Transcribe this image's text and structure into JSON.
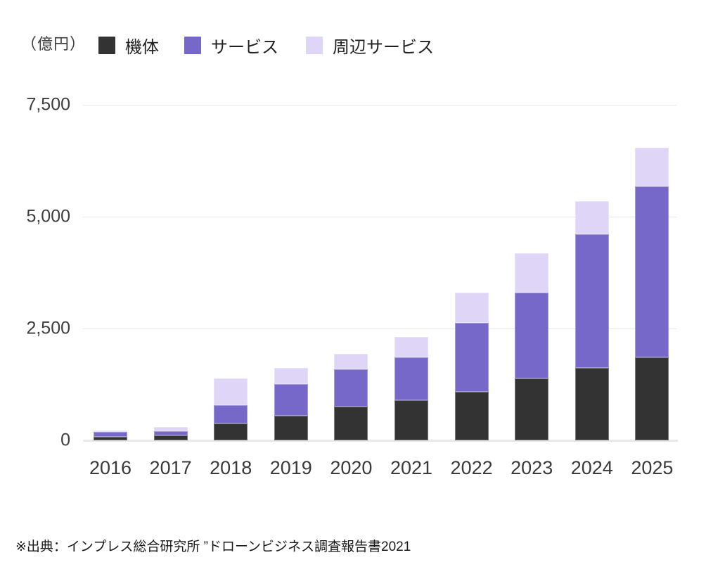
{
  "unit_label": "（億円）",
  "legend": {
    "items": [
      {
        "id": "airframe",
        "label": "機体",
        "color": "#333333"
      },
      {
        "id": "service",
        "label": "サービス",
        "color": "#7568c8"
      },
      {
        "id": "peripheral-service",
        "label": "周辺サービス",
        "color": "#ded5f7"
      }
    ]
  },
  "chart_data": {
    "type": "bar",
    "stacked": true,
    "title": "",
    "xlabel": "",
    "ylabel": "（億円）",
    "ylim": [
      0,
      7500
    ],
    "grid": true,
    "legend_position": "top",
    "categories": [
      "2016",
      "2017",
      "2018",
      "2019",
      "2020",
      "2021",
      "2022",
      "2023",
      "2024",
      "2025"
    ],
    "series": [
      {
        "id": "airframe",
        "name": "機体",
        "color": "#333333",
        "values": [
          75,
          110,
          375,
          550,
          760,
          900,
          1085,
          1385,
          1625,
          1855
        ]
      },
      {
        "id": "service",
        "name": "サービス",
        "color": "#7568c8",
        "values": [
          115,
          100,
          405,
          705,
          835,
          955,
          1545,
          1920,
          2980,
          3820
        ]
      },
      {
        "id": "peripheral-service",
        "name": "周辺サービス",
        "color": "#ded5f7",
        "values": [
          25,
          85,
          600,
          365,
          340,
          455,
          665,
          880,
          735,
          865
        ]
      }
    ],
    "totals": [
      215,
      295,
      1380,
      1620,
      1935,
      2310,
      3295,
      4185,
      5340,
      6540
    ],
    "y_ticks": [
      {
        "value": 0,
        "label": "0"
      },
      {
        "value": 2500,
        "label": "2,500"
      },
      {
        "value": 5000,
        "label": "5,000"
      },
      {
        "value": 7500,
        "label": "7,500"
      }
    ]
  },
  "source_note": "※出典：インプレス総合研究所 ”ドローンビジネス調査報告書2021"
}
